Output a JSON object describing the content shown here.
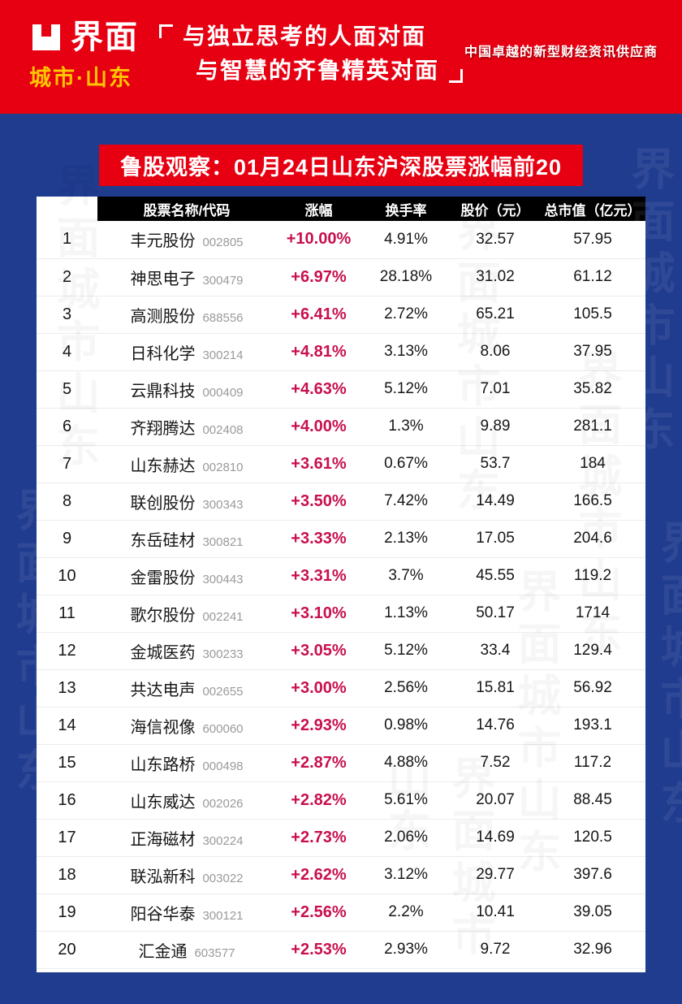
{
  "header": {
    "logo_main": "界面",
    "logo_sub": "城市·山东",
    "slogan_line1": "与独立思考的人面对面",
    "slogan_line2": "与智慧的齐鲁精英对面",
    "bracket_open": "「",
    "bracket_close": "」",
    "tagline": "中国卓越的新型财经资讯供应商"
  },
  "title_banner": "鲁股观察：01月24日山东沪深股票涨幅前20",
  "watermark_text": "界面城市山东",
  "colors": {
    "brand_red": "#e60012",
    "deep_blue": "#203c8f",
    "change_red": "#c8104d",
    "gold": "#ffc600",
    "code_gray": "#9a9a9a",
    "header_black": "#000000"
  },
  "chart_data": {
    "type": "table",
    "title": "鲁股观察：01月24日山东沪深股票涨幅前20",
    "header_labels": [
      "股票名称/代码",
      "涨幅",
      "换手率",
      "股价（元）",
      "总市值（亿元）"
    ],
    "rows": [
      {
        "rank": "1",
        "name": "丰元股份",
        "code": "002805",
        "change": "+10.00%",
        "turnover": "4.91%",
        "price": "32.57",
        "mcap": "57.95"
      },
      {
        "rank": "2",
        "name": "神思电子",
        "code": "300479",
        "change": "+6.97%",
        "turnover": "28.18%",
        "price": "31.02",
        "mcap": "61.12"
      },
      {
        "rank": "3",
        "name": "高测股份",
        "code": "688556",
        "change": "+6.41%",
        "turnover": "2.72%",
        "price": "65.21",
        "mcap": "105.5"
      },
      {
        "rank": "4",
        "name": "日科化学",
        "code": "300214",
        "change": "+4.81%",
        "turnover": "3.13%",
        "price": "8.06",
        "mcap": "37.95"
      },
      {
        "rank": "5",
        "name": "云鼎科技",
        "code": "000409",
        "change": "+4.63%",
        "turnover": "5.12%",
        "price": "7.01",
        "mcap": "35.82"
      },
      {
        "rank": "6",
        "name": "齐翔腾达",
        "code": "002408",
        "change": "+4.00%",
        "turnover": "1.3%",
        "price": "9.89",
        "mcap": "281.1"
      },
      {
        "rank": "7",
        "name": "山东赫达",
        "code": "002810",
        "change": "+3.61%",
        "turnover": "0.67%",
        "price": "53.7",
        "mcap": "184"
      },
      {
        "rank": "8",
        "name": "联创股份",
        "code": "300343",
        "change": "+3.50%",
        "turnover": "7.42%",
        "price": "14.49",
        "mcap": "166.5"
      },
      {
        "rank": "9",
        "name": "东岳硅材",
        "code": "300821",
        "change": "+3.33%",
        "turnover": "2.13%",
        "price": "17.05",
        "mcap": "204.6"
      },
      {
        "rank": "10",
        "name": "金雷股份",
        "code": "300443",
        "change": "+3.31%",
        "turnover": "3.7%",
        "price": "45.55",
        "mcap": "119.2"
      },
      {
        "rank": "11",
        "name": "歌尔股份",
        "code": "002241",
        "change": "+3.10%",
        "turnover": "1.13%",
        "price": "50.17",
        "mcap": "1714"
      },
      {
        "rank": "12",
        "name": "金城医药",
        "code": "300233",
        "change": "+3.05%",
        "turnover": "5.12%",
        "price": "33.4",
        "mcap": "129.4"
      },
      {
        "rank": "13",
        "name": "共达电声",
        "code": "002655",
        "change": "+3.00%",
        "turnover": "2.56%",
        "price": "15.81",
        "mcap": "56.92"
      },
      {
        "rank": "14",
        "name": "海信视像",
        "code": "600060",
        "change": "+2.93%",
        "turnover": "0.98%",
        "price": "14.76",
        "mcap": "193.1"
      },
      {
        "rank": "15",
        "name": "山东路桥",
        "code": "000498",
        "change": "+2.87%",
        "turnover": "4.88%",
        "price": "7.52",
        "mcap": "117.2"
      },
      {
        "rank": "16",
        "name": "山东威达",
        "code": "002026",
        "change": "+2.82%",
        "turnover": "5.61%",
        "price": "20.07",
        "mcap": "88.45"
      },
      {
        "rank": "17",
        "name": "正海磁材",
        "code": "300224",
        "change": "+2.73%",
        "turnover": "2.06%",
        "price": "14.69",
        "mcap": "120.5"
      },
      {
        "rank": "18",
        "name": "联泓新科",
        "code": "003022",
        "change": "+2.62%",
        "turnover": "3.12%",
        "price": "29.77",
        "mcap": "397.6"
      },
      {
        "rank": "19",
        "name": "阳谷华泰",
        "code": "300121",
        "change": "+2.56%",
        "turnover": "2.2%",
        "price": "10.41",
        "mcap": "39.05"
      },
      {
        "rank": "20",
        "name": "汇金通",
        "code": "603577",
        "change": "+2.53%",
        "turnover": "2.93%",
        "price": "9.72",
        "mcap": "32.96"
      }
    ]
  }
}
